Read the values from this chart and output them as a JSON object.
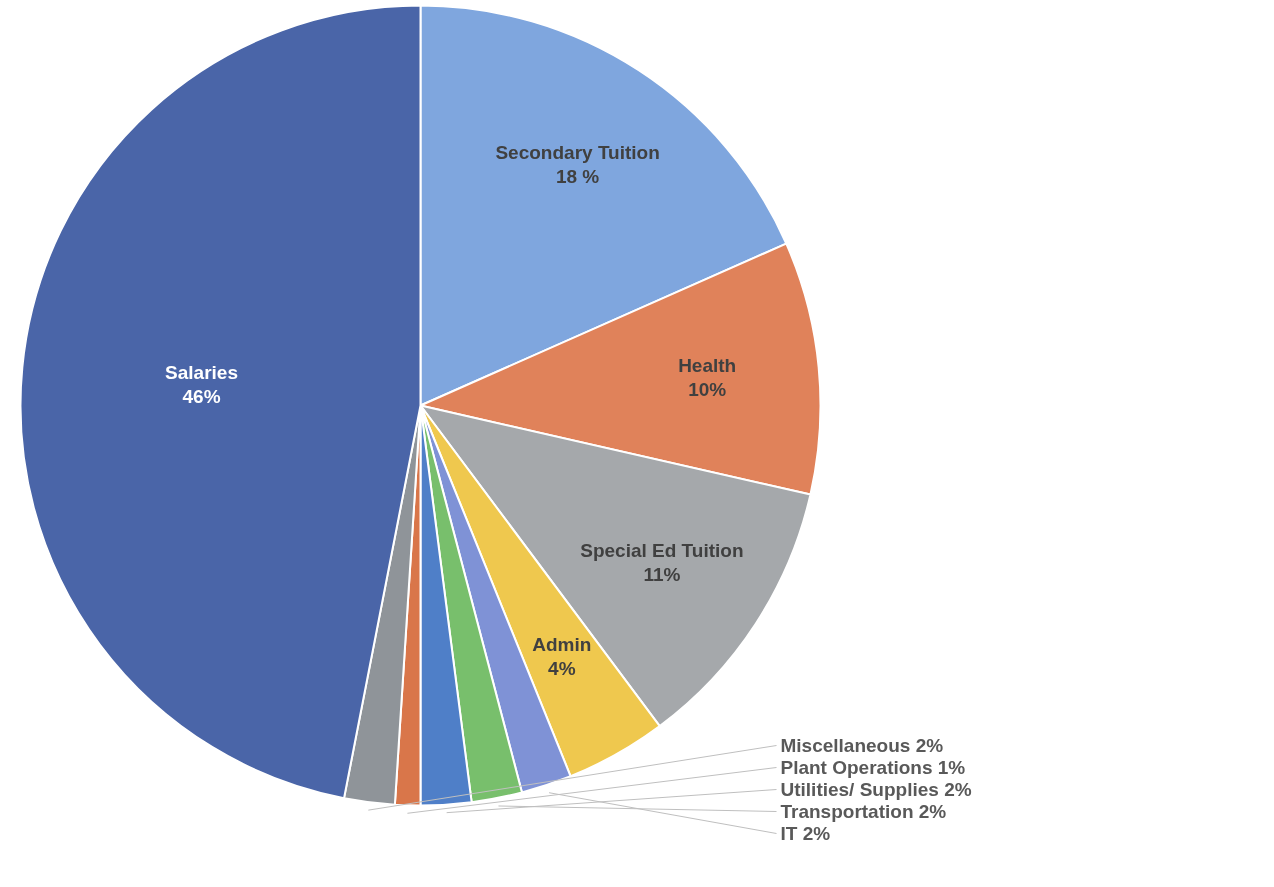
{
  "chart_data": {
    "type": "pie",
    "categories": [
      "Secondary Tuition",
      "Health",
      "Special Ed Tuition",
      "Admin",
      "IT",
      "Transportation",
      "Utilities/ Supplies",
      "Plant Operations",
      "Miscellaneous",
      "Salaries"
    ],
    "values": [
      18,
      10,
      11,
      4,
      2,
      2,
      2,
      1,
      2,
      46
    ],
    "value_labels": [
      "18 %",
      "10%",
      "11%",
      "4%",
      "2%",
      "2%",
      "2%",
      "1%",
      "2%",
      "46%"
    ],
    "colors": [
      "#7fa6de",
      "#e0825a",
      "#a5a8ab",
      "#efc84e",
      "#7f92d6",
      "#78bf6c",
      "#4f7fc8",
      "#d9764a",
      "#8f9499",
      "#4a65a8"
    ]
  }
}
